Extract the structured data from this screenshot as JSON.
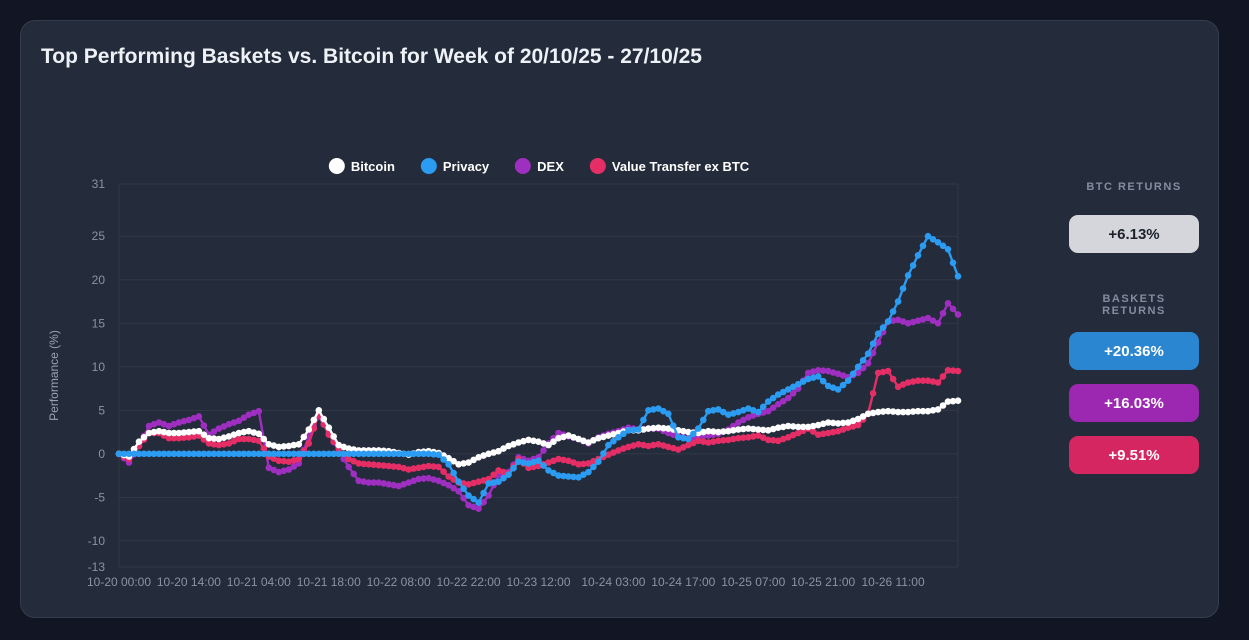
{
  "title": "Top Performing Baskets vs. Bitcoin for Week of 20/10/25 - 27/10/25",
  "right_panel": {
    "btc_label": "BTC RETURNS",
    "btc_value": "+6.13%",
    "btc_badge_color": "#d4d6db",
    "baskets_label": "BASKETS RETURNS",
    "basket_values": [
      {
        "label": "+20.36%",
        "color": "#2b86d2"
      },
      {
        "label": "+16.03%",
        "color": "#9c27b0"
      },
      {
        "label": "+9.51%",
        "color": "#d62661"
      }
    ]
  },
  "chart_data": {
    "type": "line",
    "title": "",
    "xlabel": "",
    "ylabel": "Performance (%)",
    "x_unit": "hours since 10-20 00:00",
    "xlim": [
      0,
      168
    ],
    "ylim": [
      -13,
      31
    ],
    "grid": true,
    "legend_position": "top-center",
    "marker": "circle",
    "y_ticks": [
      31,
      25,
      20,
      15,
      10,
      5,
      0,
      -5,
      -10,
      -13
    ],
    "x_ticks": [
      {
        "hour": 0,
        "label": "10-20 00:00"
      },
      {
        "hour": 14,
        "label": "10-20 14:00"
      },
      {
        "hour": 28,
        "label": "10-21 04:00"
      },
      {
        "hour": 42,
        "label": "10-21 18:00"
      },
      {
        "hour": 56,
        "label": "10-22 08:00"
      },
      {
        "hour": 70,
        "label": "10-22 22:00"
      },
      {
        "hour": 84,
        "label": "10-23 12:00"
      },
      {
        "hour": 99,
        "label": "10-24 03:00"
      },
      {
        "hour": 113,
        "label": "10-24 17:00"
      },
      {
        "hour": 127,
        "label": "10-25 07:00"
      },
      {
        "hour": 141,
        "label": "10-25 21:00"
      },
      {
        "hour": 155,
        "label": "10-26 11:00"
      }
    ],
    "x": [
      0,
      2,
      4,
      6,
      8,
      10,
      12,
      14,
      16,
      18,
      20,
      22,
      24,
      26,
      28,
      30,
      32,
      34,
      36,
      38,
      40,
      42,
      44,
      46,
      48,
      50,
      52,
      54,
      56,
      58,
      60,
      62,
      64,
      66,
      68,
      70,
      72,
      74,
      76,
      78,
      80,
      82,
      84,
      86,
      88,
      90,
      92,
      94,
      96,
      98,
      100,
      102,
      104,
      106,
      108,
      110,
      112,
      114,
      116,
      118,
      120,
      122,
      124,
      126,
      128,
      130,
      132,
      134,
      136,
      138,
      140,
      142,
      144,
      146,
      148,
      150,
      152,
      154,
      156,
      158,
      160,
      162,
      164,
      166,
      168
    ],
    "series": [
      {
        "name": "Bitcoin",
        "color": "#ffffff",
        "final_return": "+6.13%",
        "values": [
          0,
          -0.3,
          1.4,
          2.4,
          2.6,
          2.4,
          2.4,
          2.5,
          2.6,
          1.8,
          1.7,
          2.0,
          2.4,
          2.6,
          2.3,
          1.1,
          0.8,
          0.9,
          1.1,
          2.8,
          5.0,
          3.0,
          1.0,
          0.6,
          0.4,
          0.4,
          0.4,
          0.3,
          0.1,
          -0.1,
          0.2,
          0.3,
          0.1,
          -0.5,
          -1.2,
          -1.0,
          -0.4,
          0.0,
          0.3,
          0.9,
          1.3,
          1.6,
          1.4,
          1.0,
          1.8,
          2.1,
          1.7,
          1.3,
          1.8,
          2.1,
          2.4,
          2.7,
          2.7,
          2.9,
          3.0,
          2.9,
          2.7,
          2.5,
          2.4,
          2.6,
          2.5,
          2.6,
          2.8,
          2.9,
          2.8,
          2.7,
          3.0,
          3.2,
          3.1,
          3.1,
          3.3,
          3.6,
          3.5,
          3.6,
          4.0,
          4.6,
          4.8,
          4.9,
          4.8,
          4.8,
          4.9,
          4.9,
          5.1,
          6.0,
          6.1
        ]
      },
      {
        "name": "Privacy",
        "color": "#2b9cf2",
        "final_return": "+20.36%",
        "values": [
          0,
          0,
          0,
          0,
          0,
          0,
          0,
          0,
          0,
          0,
          0,
          0,
          0,
          0,
          0,
          0,
          0,
          0,
          0,
          0,
          0,
          0,
          0,
          0,
          0,
          0,
          0,
          0,
          0,
          0,
          0,
          0,
          -0.1,
          -1.2,
          -3.2,
          -4.8,
          -5.6,
          -3.4,
          -3.2,
          -2.4,
          -0.9,
          -1.1,
          -0.8,
          -1.9,
          -2.5,
          -2.6,
          -2.7,
          -2.1,
          -0.9,
          1.0,
          1.9,
          2.7,
          2.8,
          5.0,
          5.2,
          4.6,
          1.9,
          1.7,
          2.9,
          4.9,
          5.1,
          4.5,
          4.8,
          5.2,
          4.8,
          6.0,
          6.8,
          7.4,
          8.0,
          8.6,
          8.9,
          7.8,
          7.4,
          8.4,
          10.0,
          11.5,
          13.8,
          15.2,
          17.5,
          20.5,
          22.8,
          25.0,
          24.3,
          23.5,
          20.4
        ]
      },
      {
        "name": "DEX",
        "color": "#9e2fc0",
        "final_return": "+16.03%",
        "values": [
          0,
          -1.0,
          0.9,
          3.2,
          3.6,
          3.2,
          3.6,
          3.9,
          4.3,
          2.2,
          2.9,
          3.4,
          3.8,
          4.5,
          4.9,
          -1.6,
          -2.1,
          -1.8,
          -1.1,
          2.0,
          4.3,
          2.4,
          0.3,
          -1.5,
          -3.1,
          -3.3,
          -3.3,
          -3.5,
          -3.7,
          -3.3,
          -2.9,
          -2.8,
          -3.1,
          -3.6,
          -4.3,
          -5.9,
          -6.3,
          -4.8,
          -2.4,
          -2.1,
          -0.4,
          -0.8,
          -0.4,
          1.2,
          2.4,
          2.0,
          1.7,
          1.2,
          1.9,
          2.3,
          2.6,
          3.0,
          2.8,
          2.9,
          2.9,
          2.4,
          2.0,
          1.8,
          2.0,
          2.1,
          2.3,
          2.8,
          3.6,
          4.2,
          4.6,
          4.9,
          5.7,
          6.4,
          7.5,
          9.3,
          9.6,
          9.5,
          9.2,
          8.8,
          9.3,
          10.4,
          12.8,
          15.2,
          15.4,
          15.0,
          15.3,
          15.6,
          15.0,
          17.3,
          16.0
        ]
      },
      {
        "name": "Value Transfer ex BTC",
        "color": "#e62e66",
        "final_return": "+9.51%",
        "values": [
          0,
          -0.6,
          0.9,
          2.4,
          2.4,
          1.8,
          1.8,
          1.9,
          2.1,
          1.2,
          1.0,
          1.2,
          1.7,
          1.7,
          1.5,
          -0.3,
          -0.8,
          -0.9,
          -0.6,
          1.2,
          4.6,
          2.2,
          0.6,
          -0.6,
          -1.1,
          -1.2,
          -1.3,
          -1.4,
          -1.5,
          -1.8,
          -1.6,
          -1.4,
          -1.5,
          -2.6,
          -3.3,
          -3.5,
          -3.2,
          -2.9,
          -1.9,
          -2.3,
          -0.6,
          -1.6,
          -1.4,
          -1.0,
          -0.6,
          -0.8,
          -1.2,
          -1.1,
          -0.6,
          -0.1,
          0.4,
          0.8,
          1.1,
          0.9,
          1.1,
          0.8,
          0.5,
          1.0,
          1.5,
          1.3,
          1.5,
          1.6,
          1.8,
          1.9,
          2.1,
          1.6,
          1.5,
          1.9,
          2.4,
          2.9,
          2.2,
          2.4,
          2.6,
          3.0,
          3.3,
          4.6,
          9.3,
          9.5,
          7.7,
          8.2,
          8.4,
          8.4,
          8.2,
          9.6,
          9.5
        ]
      }
    ]
  }
}
